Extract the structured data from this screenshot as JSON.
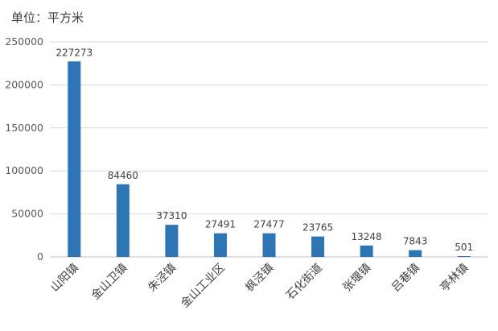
{
  "chart_data": {
    "type": "bar",
    "unit_label": "单位：平方米",
    "categories": [
      "山阳镇",
      "金山卫镇",
      "朱泾镇",
      "金山工业区",
      "枫泾镇",
      "石化街道",
      "张堰镇",
      "吕巷镇",
      "亭林镇"
    ],
    "values": [
      227273,
      84460,
      37310,
      27491,
      27477,
      23765,
      13248,
      7843,
      501
    ],
    "data_labels": [
      "227273",
      "84460",
      "37310",
      "27491",
      "27477",
      "23765",
      "13248",
      "7843",
      "501"
    ],
    "ylim": [
      0,
      250000
    ],
    "yticks": [
      0,
      50000,
      100000,
      150000,
      200000,
      250000
    ],
    "ytick_labels": [
      "0",
      "50000",
      "100000",
      "150000",
      "200000",
      "250000"
    ],
    "grid": true,
    "bar_color": "#2E75B6",
    "grid_color": "#D9D9D9",
    "axis_color": "#BFBFBF"
  }
}
